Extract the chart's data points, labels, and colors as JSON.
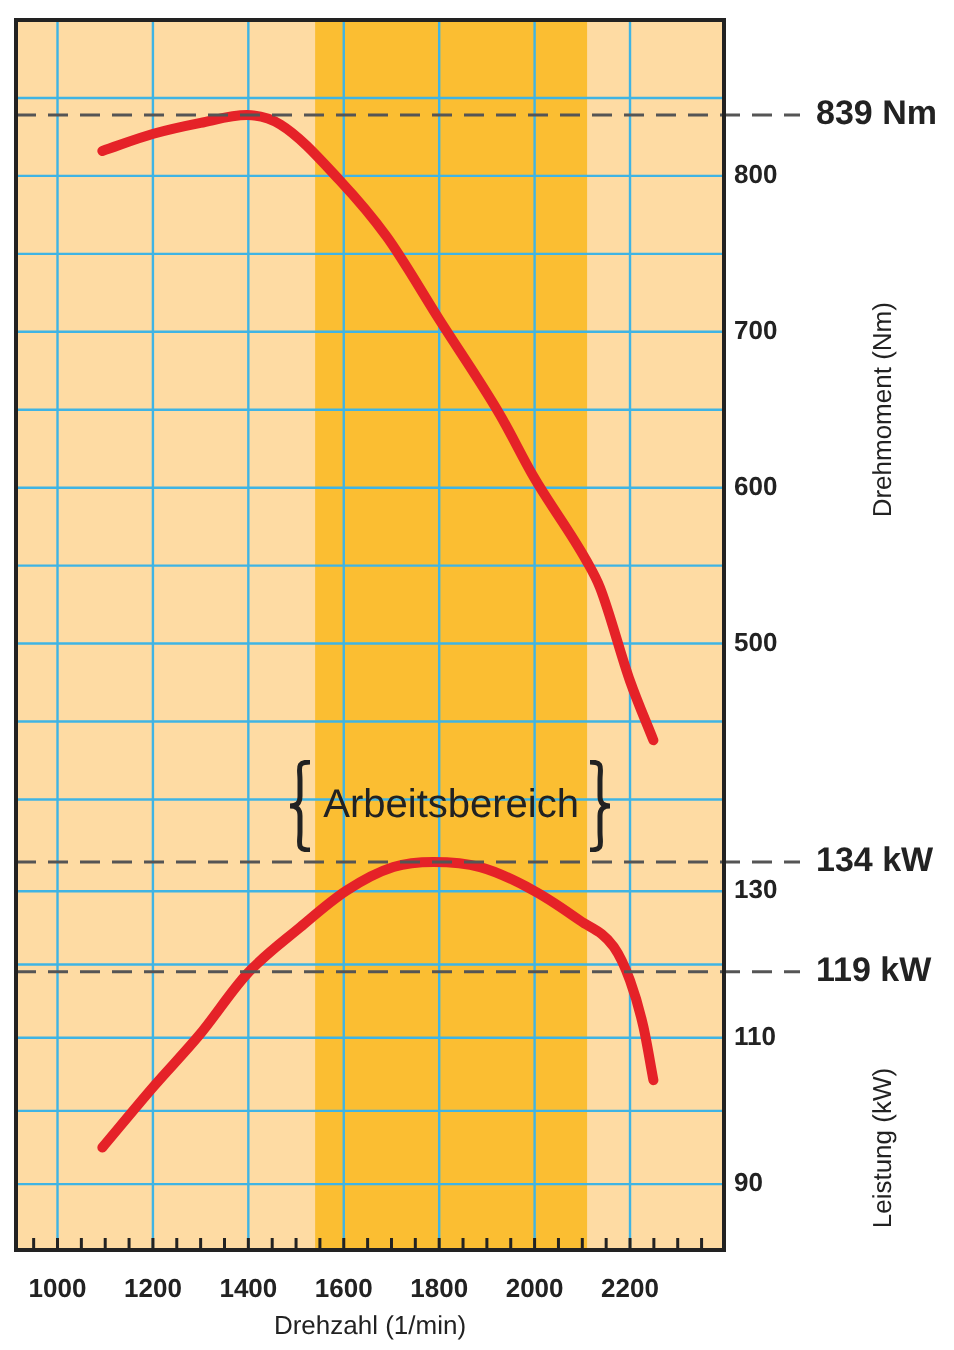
{
  "chart_data": {
    "type": "line",
    "xlabel": "Drehzahl (1/min)",
    "y2label": "Drehmoment (Nm)",
    "y3label": "Leistung (kW)",
    "xlim": [
      913,
      2397
    ],
    "xticks": [
      {
        "value": 950,
        "label": null
      },
      1000,
      {
        "value": 1050,
        "label": null
      },
      {
        "value": 1100,
        "label": null
      },
      {
        "value": 1150,
        "label": null
      },
      1200,
      {
        "value": 1250,
        "label": null
      },
      {
        "value": 1300,
        "label": null
      },
      {
        "value": 1350,
        "label": null
      },
      1400,
      {
        "value": 1450,
        "label": null
      },
      {
        "value": 1500,
        "label": null
      },
      {
        "value": 1550,
        "label": null
      },
      1600,
      {
        "value": 1650,
        "label": null
      },
      {
        "value": 1700,
        "label": null
      },
      {
        "value": 1750,
        "label": null
      },
      1800,
      {
        "value": 1850,
        "label": null
      },
      {
        "value": 1900,
        "label": null
      },
      {
        "value": 1950,
        "label": null
      },
      2000,
      {
        "value": 2050,
        "label": null
      },
      {
        "value": 2100,
        "label": null
      },
      {
        "value": 2150,
        "label": null
      },
      2200,
      {
        "value": 2250,
        "label": null
      },
      {
        "value": 2300,
        "label": null
      },
      {
        "value": 2350,
        "label": null
      }
    ],
    "y2lim": [
      111,
      900
    ],
    "y2ticks": [
      {
        "value": 400,
        "label": null
      },
      {
        "value": 450,
        "label": null
      },
      500,
      {
        "value": 550,
        "label": null
      },
      600,
      {
        "value": 650,
        "label": null
      },
      700,
      {
        "value": 750,
        "label": null
      },
      800,
      {
        "value": 850,
        "label": null
      }
    ],
    "y3lim": [
      81,
      249
    ],
    "y3ticks": [
      90,
      {
        "value": 100,
        "label": null
      },
      110,
      {
        "value": 120,
        "label": null
      },
      130
    ],
    "series": [
      {
        "color": "#e52228",
        "axis": "y2",
        "x": [
          1094,
          1201,
          1300,
          1397,
          1467,
          1592,
          1690,
          1802,
          1927,
          1998,
          2109,
          2137,
          2200,
          2249
        ],
        "values": [
          816,
          827,
          834,
          839,
          833,
          797,
          761,
          707,
          647,
          607,
          553,
          536,
          476,
          438
        ]
      },
      {
        "color": "#e52228",
        "axis": "y3",
        "x": [
          1094,
          1201,
          1299,
          1397,
          1509,
          1606,
          1704,
          1788,
          1886,
          1998,
          2095,
          2166,
          2200,
          2228,
          2249
        ],
        "values": [
          95,
          103.3,
          110.5,
          118.7,
          125.1,
          130.1,
          133.3,
          134,
          133.3,
          130.1,
          126,
          122.4,
          117.8,
          111.5,
          104.2
        ]
      }
    ],
    "ref_lines": [
      {
        "axis": "y2",
        "value": 839,
        "label": "839 Nm",
        "color": "#555555",
        "line_style": "dashed"
      },
      {
        "axis": "y3",
        "value": 134,
        "label": "134 kW",
        "color": "#555555",
        "line_style": "dashed"
      },
      {
        "axis": "y3",
        "value": 119,
        "label": "119 kW",
        "color": "#555555",
        "line_style": "dashed"
      }
    ],
    "bands": [
      {
        "axis": "x",
        "from": 1540,
        "to": 2110,
        "label": "Arbeitsbereich",
        "color": "#fbbe32"
      }
    ],
    "grid": true,
    "legend": false,
    "marker": "none",
    "line_style": "solid"
  }
}
